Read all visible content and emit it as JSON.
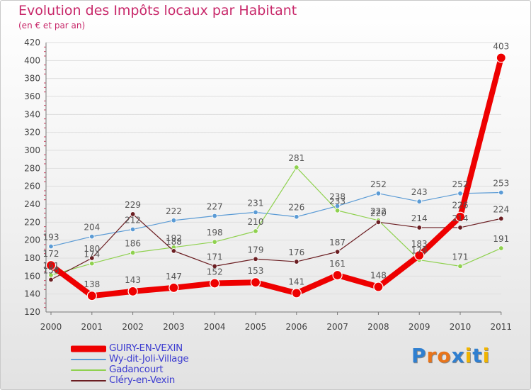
{
  "title": "Evolution des Impôts locaux par Habitant",
  "subtitle": "(en € et par an)",
  "logo": {
    "text": "Proxiti",
    "letters": [
      "P",
      "r",
      "o",
      "x",
      "i",
      "t",
      "i"
    ],
    "colors": [
      "#2f7fd0",
      "#e8741a",
      "#e8741a",
      "#2f7fd0",
      "#f0b400",
      "#2f7fd0",
      "#f0b400"
    ]
  },
  "chart_data": {
    "type": "line",
    "title": "Evolution des Impôts locaux par Habitant",
    "ylabel": "(en € et par an)",
    "xlabel": "",
    "categories": [
      "2000",
      "2001",
      "2002",
      "2003",
      "2004",
      "2005",
      "2006",
      "2007",
      "2008",
      "2009",
      "2010",
      "2011"
    ],
    "ylim": [
      120,
      420
    ],
    "yticks": [
      120,
      140,
      160,
      180,
      200,
      220,
      240,
      260,
      280,
      300,
      320,
      340,
      360,
      380,
      400,
      420
    ],
    "grid": "horizontal",
    "legend": "bottom-left",
    "series": [
      {
        "name": "Wy-dit-Joli-Village",
        "color": "#5b9bd5",
        "values": [
          193,
          204,
          212,
          222,
          227,
          231,
          226,
          238,
          252,
          243,
          252,
          253
        ],
        "labels": [
          "193",
          "204",
          "212",
          "222",
          "227",
          "231",
          "226",
          "238",
          "252",
          "243",
          "252",
          "253"
        ],
        "width": 1.2,
        "marker": 3.3
      },
      {
        "name": "Gadancourt",
        "color": "#8fd14f",
        "values": [
          161,
          174,
          186,
          192,
          198,
          210,
          281,
          233,
          222,
          178,
          171,
          191
        ],
        "labels": [
          "161",
          "174",
          "186",
          "192",
          "198",
          "210",
          "281",
          "233",
          "222",
          "178",
          "171",
          "191"
        ],
        "width": 1.2,
        "marker": 3.3
      },
      {
        "name": "Cléry-en-Vexin",
        "color": "#6b1e22",
        "values": [
          156,
          180,
          229,
          188,
          171,
          179,
          176,
          187,
          220,
          214,
          214,
          224
        ],
        "labels": [
          "156",
          "180",
          "229",
          "188",
          "171",
          "179",
          "176",
          "187",
          "220",
          "214",
          "214",
          "224"
        ],
        "width": 1.2,
        "marker": 3.3
      },
      {
        "name": "GUIRY-EN-VEXIN",
        "color": "#ee0000",
        "values": [
          172,
          138,
          143,
          147,
          152,
          153,
          141,
          161,
          148,
          183,
          226,
          403
        ],
        "labels": [
          "172",
          "138",
          "143",
          "147",
          "152",
          "153",
          "141",
          "161",
          "148",
          "183",
          "226",
          "403"
        ],
        "width": 8,
        "marker": 6.5
      }
    ],
    "legend_order": [
      "GUIRY-EN-VEXIN",
      "Wy-dit-Joli-Village",
      "Gadancourt",
      "Cléry-en-Vexin"
    ]
  }
}
